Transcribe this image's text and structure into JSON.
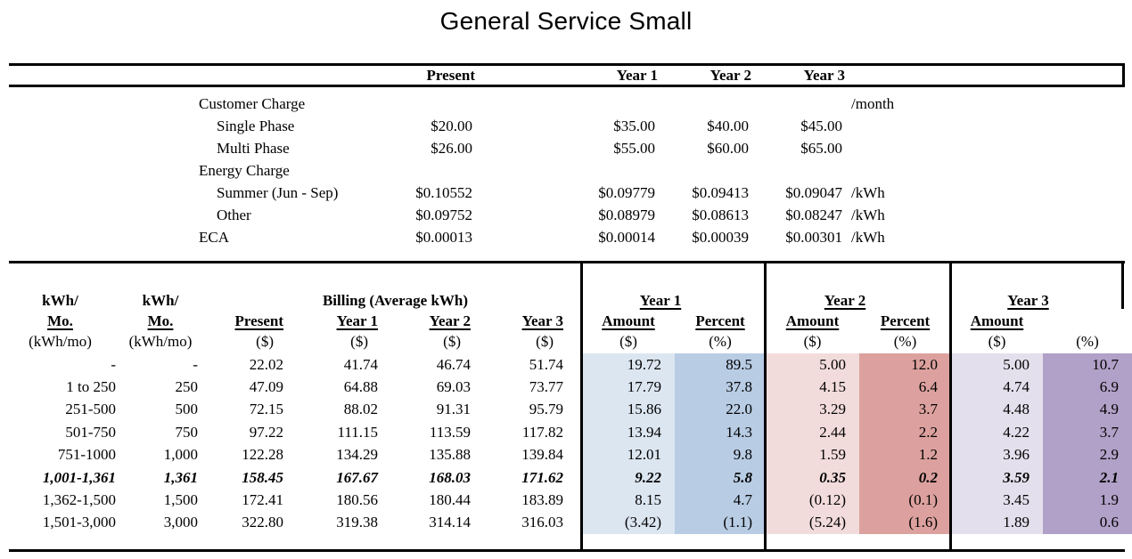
{
  "title": "General Service Small",
  "rate_table": {
    "col_headers": {
      "present": "Present",
      "year1": "Year 1",
      "year2": "Year 2",
      "year3": "Year 3"
    },
    "rows": [
      {
        "label": "Customer Charge",
        "indent": 0,
        "present": "",
        "y1": "",
        "y2": "",
        "y3": "",
        "unit": "/month"
      },
      {
        "label": "Single Phase",
        "indent": 1,
        "present": "$20.00",
        "y1": "$35.00",
        "y2": "$40.00",
        "y3": "$45.00",
        "unit": ""
      },
      {
        "label": "Multi Phase",
        "indent": 1,
        "present": "$26.00",
        "y1": "$55.00",
        "y2": "$60.00",
        "y3": "$65.00",
        "unit": ""
      },
      {
        "label": "Energy Charge",
        "indent": 0,
        "present": "",
        "y1": "",
        "y2": "",
        "y3": "",
        "unit": ""
      },
      {
        "label": "Summer (Jun - Sep)",
        "indent": 1,
        "present": "$0.10552",
        "y1": "$0.09779",
        "y2": "$0.09413",
        "y3": "$0.09047",
        "unit": "/kWh"
      },
      {
        "label": "Other",
        "indent": 1,
        "present": "$0.09752",
        "y1": "$0.08979",
        "y2": "$0.08613",
        "y3": "$0.08247",
        "unit": "/kWh"
      },
      {
        "label": "ECA",
        "indent": 0,
        "present": "$0.00013",
        "y1": "$0.00014",
        "y2": "$0.00039",
        "y3": "$0.00301",
        "unit": "/kWh"
      }
    ]
  },
  "billing_table": {
    "col_headers": {
      "tier": {
        "l1": "kWh/",
        "l2": "Mo.",
        "l3": "(kWh/mo)"
      },
      "avg": {
        "l1": "kWh/",
        "l2": "Mo.",
        "l3": "(kWh/mo)"
      },
      "billing_group": "Billing (Average kWh)",
      "present": "Present",
      "year1": "Year 1",
      "year2": "Year 2",
      "year3": "Year 3",
      "dollar": "($)",
      "groups": [
        {
          "label": "Year 1",
          "amount": "Amount",
          "percent": "Percent",
          "dollar": "($)",
          "pct": "(%)"
        },
        {
          "label": "Year 2",
          "amount": "Amount",
          "percent": "Percent",
          "dollar": "($)",
          "pct": "(%)"
        },
        {
          "label": "Year 3",
          "amount": "Amount",
          "percent": "",
          "dollar": "($)",
          "pct": "(%)"
        }
      ]
    },
    "rows": [
      {
        "tier": "-",
        "avg": "-",
        "present": "22.02",
        "y1": "41.74",
        "y2": "46.74",
        "y3": "51.74",
        "y1a": "19.72",
        "y1p": "89.5",
        "y2a": "5.00",
        "y2p": "12.0",
        "y3a": "5.00",
        "y3p": "10.7",
        "em": false
      },
      {
        "tier": "1 to 250",
        "avg": "250",
        "present": "47.09",
        "y1": "64.88",
        "y2": "69.03",
        "y3": "73.77",
        "y1a": "17.79",
        "y1p": "37.8",
        "y2a": "4.15",
        "y2p": "6.4",
        "y3a": "4.74",
        "y3p": "6.9",
        "em": false
      },
      {
        "tier": "251-500",
        "avg": "500",
        "present": "72.15",
        "y1": "88.02",
        "y2": "91.31",
        "y3": "95.79",
        "y1a": "15.86",
        "y1p": "22.0",
        "y2a": "3.29",
        "y2p": "3.7",
        "y3a": "4.48",
        "y3p": "4.9",
        "em": false
      },
      {
        "tier": "501-750",
        "avg": "750",
        "present": "97.22",
        "y1": "111.15",
        "y2": "113.59",
        "y3": "117.82",
        "y1a": "13.94",
        "y1p": "14.3",
        "y2a": "2.44",
        "y2p": "2.2",
        "y3a": "4.22",
        "y3p": "3.7",
        "em": false
      },
      {
        "tier": "751-1000",
        "avg": "1,000",
        "present": "122.28",
        "y1": "134.29",
        "y2": "135.88",
        "y3": "139.84",
        "y1a": "12.01",
        "y1p": "9.8",
        "y2a": "1.59",
        "y2p": "1.2",
        "y3a": "3.96",
        "y3p": "2.9",
        "em": false
      },
      {
        "tier": "1,001-1,361",
        "avg": "1,361",
        "present": "158.45",
        "y1": "167.67",
        "y2": "168.03",
        "y3": "171.62",
        "y1a": "9.22",
        "y1p": "5.8",
        "y2a": "0.35",
        "y2p": "0.2",
        "y3a": "3.59",
        "y3p": "2.1",
        "em": true
      },
      {
        "tier": "1,362-1,500",
        "avg": "1,500",
        "present": "172.41",
        "y1": "180.56",
        "y2": "180.44",
        "y3": "183.89",
        "y1a": "8.15",
        "y1p": "4.7",
        "y2a": "(0.12)",
        "y2p": "(0.1)",
        "y3a": "3.45",
        "y3p": "1.9",
        "em": false
      },
      {
        "tier": "1,501-3,000",
        "avg": "3,000",
        "present": "322.80",
        "y1": "319.38",
        "y2": "314.14",
        "y3": "316.03",
        "y1a": "(3.42)",
        "y1p": "(1.1)",
        "y2a": "(5.24)",
        "y2p": "(1.6)",
        "y3a": "1.89",
        "y3p": "0.6",
        "em": false
      }
    ]
  },
  "colors": {
    "year1_amount_bg": "#dce6f1",
    "year1_percent_bg": "#b8cce4",
    "year2_amount_bg": "#f2dcdb",
    "year2_percent_bg": "#dca19e",
    "year3_amount_bg": "#e4dfec",
    "year3_percent_bg": "#b1a0c7",
    "text": "#000000",
    "background": "#ffffff"
  }
}
